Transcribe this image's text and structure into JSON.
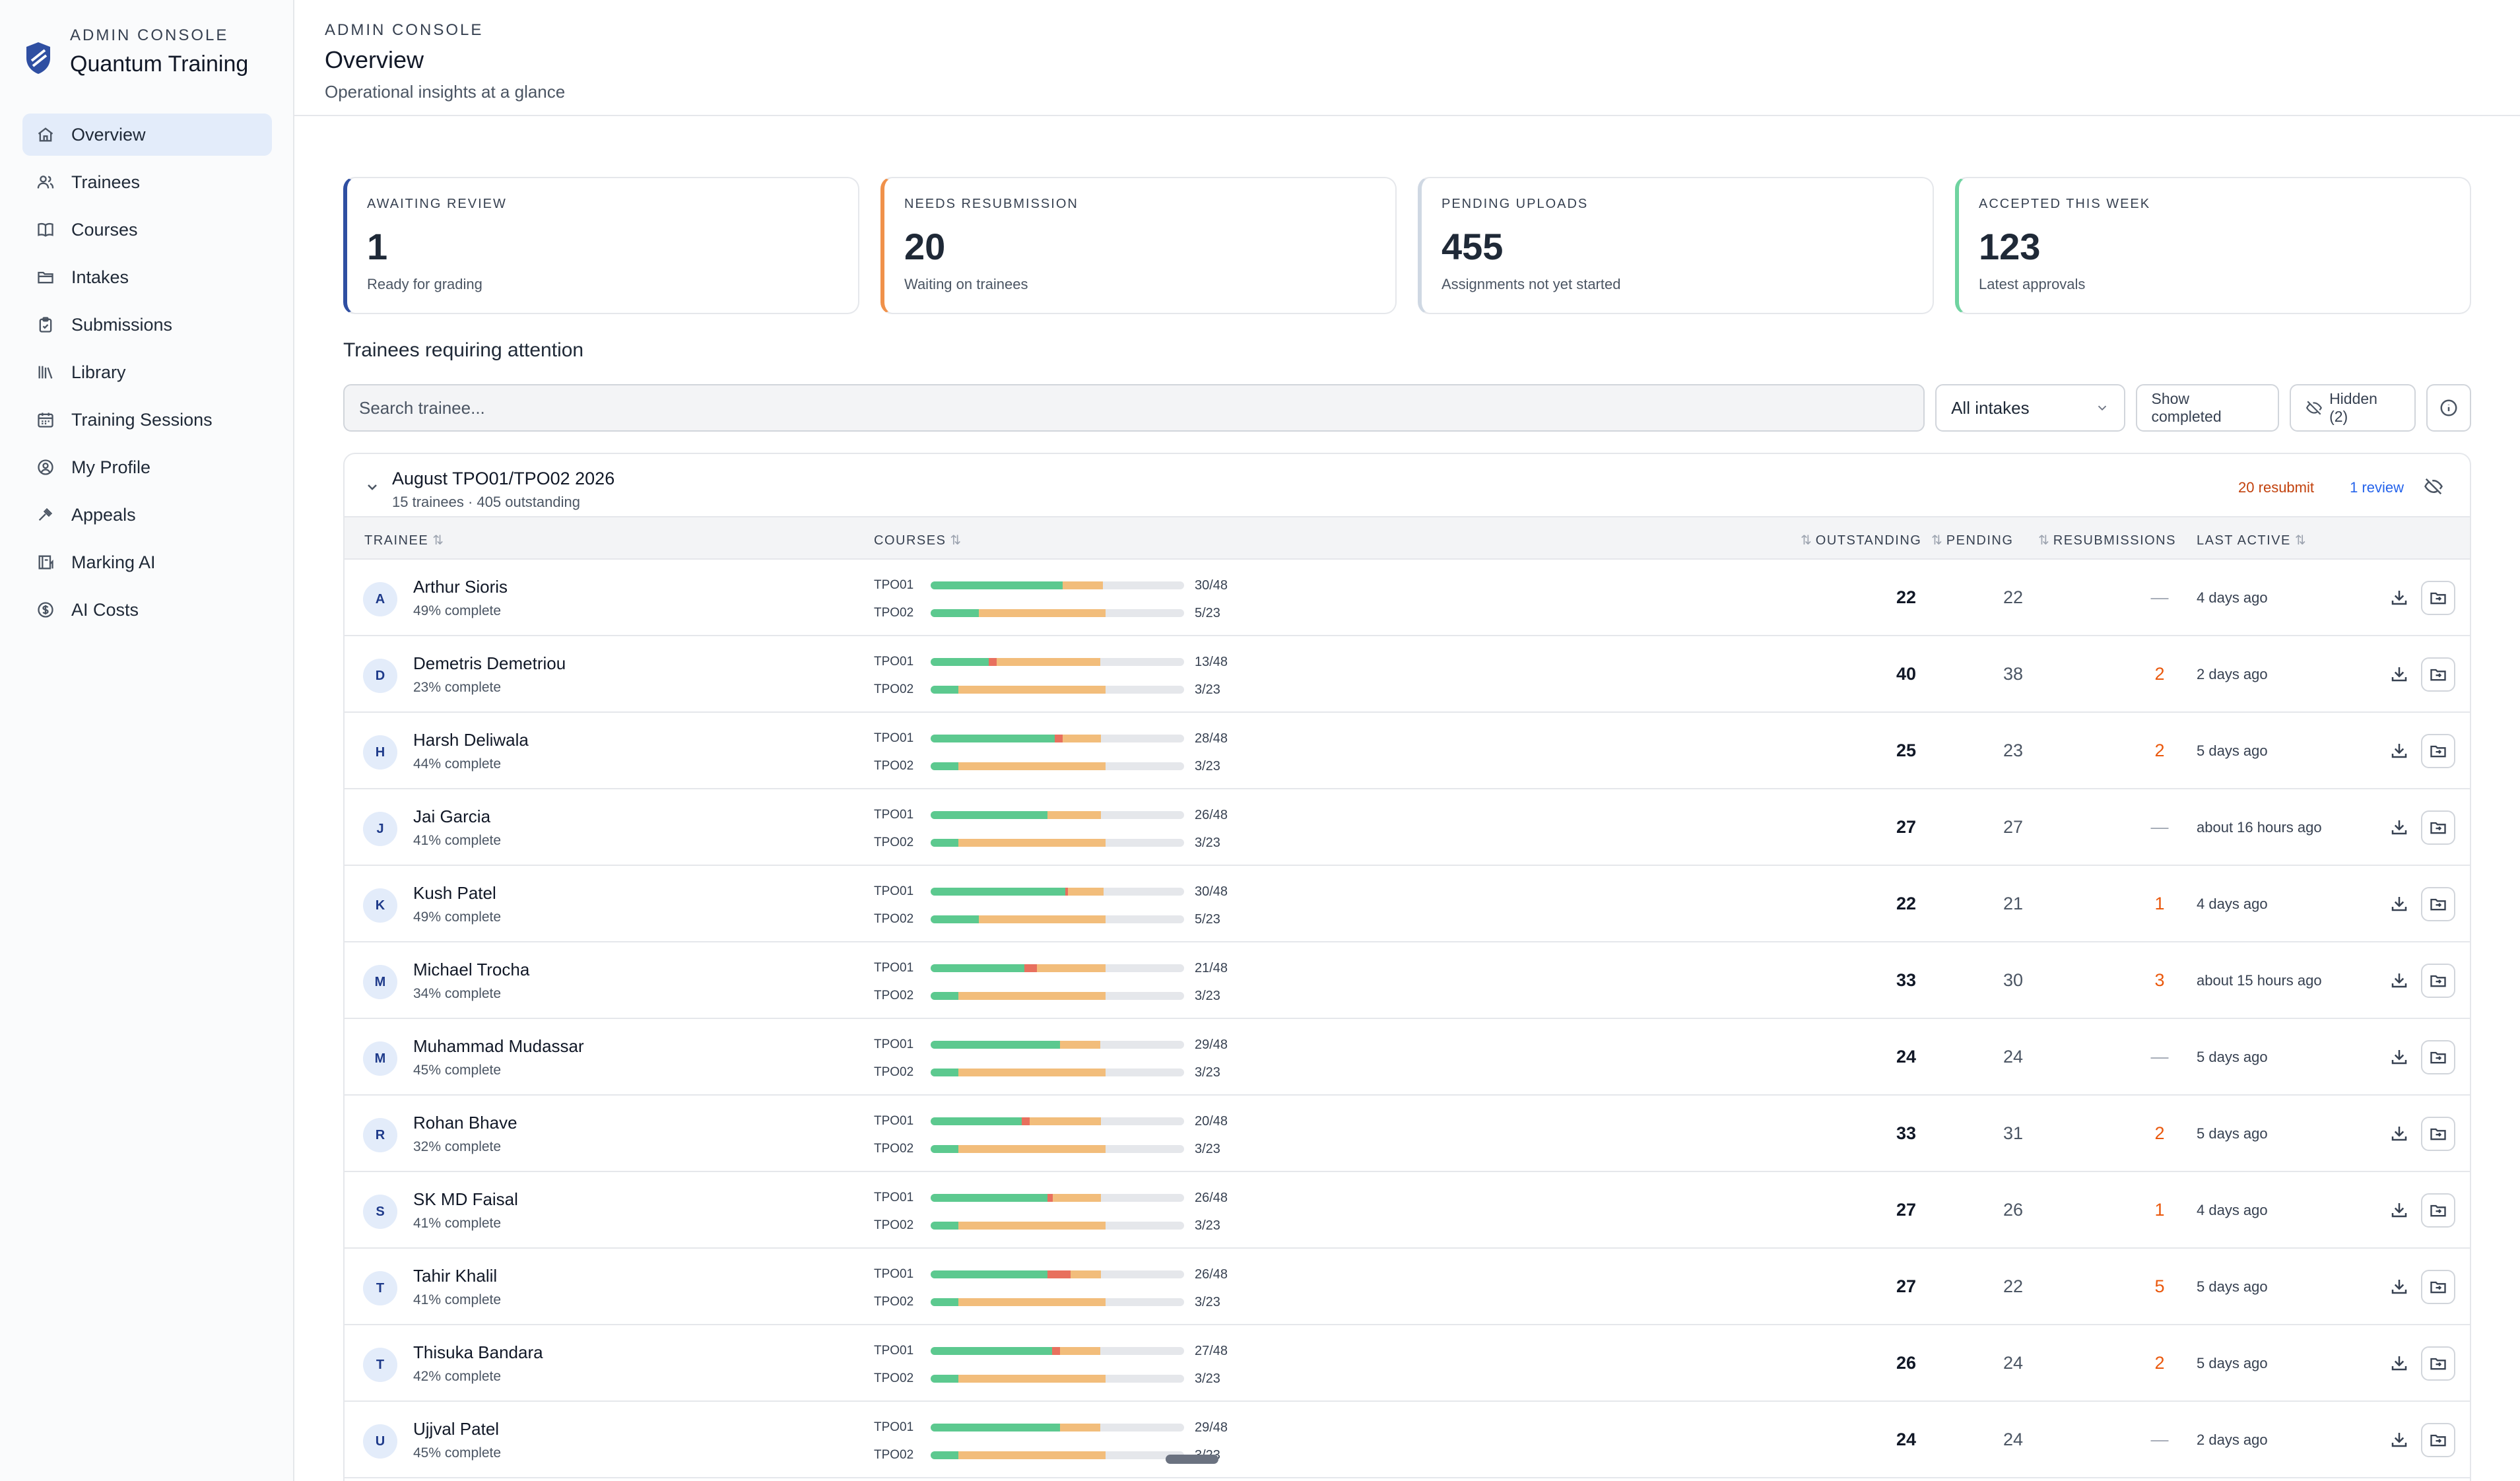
{
  "sidebar": {
    "brand_sub": "ADMIN CONSOLE",
    "brand_title": "Quantum Training",
    "items": [
      {
        "label": "Overview",
        "icon": "home-icon"
      },
      {
        "label": "Trainees",
        "icon": "users-icon"
      },
      {
        "label": "Courses",
        "icon": "book-icon"
      },
      {
        "label": "Intakes",
        "icon": "folder-icon"
      },
      {
        "label": "Submissions",
        "icon": "clipboard-icon"
      },
      {
        "label": "Library",
        "icon": "library-icon"
      },
      {
        "label": "Training Sessions",
        "icon": "calendar-icon"
      },
      {
        "label": "My Profile",
        "icon": "user-circle-icon"
      },
      {
        "label": "Appeals",
        "icon": "gavel-icon"
      },
      {
        "label": "Marking AI",
        "icon": "book-open-icon"
      },
      {
        "label": "AI Costs",
        "icon": "dollar-circle-icon"
      }
    ]
  },
  "header": {
    "sub": "ADMIN CONSOLE",
    "title": "Overview",
    "desc": "Operational insights at a glance"
  },
  "cards": [
    {
      "label": "AWAITING REVIEW",
      "value": "1",
      "hint": "Ready for grading",
      "color": "#2f4fa2"
    },
    {
      "label": "NEEDS RESUBMISSION",
      "value": "20",
      "hint": "Waiting on trainees",
      "color": "#f0914a"
    },
    {
      "label": "PENDING UPLOADS",
      "value": "455",
      "hint": "Assignments not yet started",
      "color": "#cfd8e3"
    },
    {
      "label": "ACCEPTED THIS WEEK",
      "value": "123",
      "hint": "Latest approvals",
      "color": "#6fd3a0"
    }
  ],
  "section_title": "Trainees requiring attention",
  "toolbar": {
    "search_placeholder": "Search trainee...",
    "intake_select": "All intakes",
    "show_completed": "Show completed",
    "hidden": "Hidden (2)"
  },
  "group": {
    "name": "August TPO01/TPO02 2026",
    "meta": "15 trainees · 405 outstanding",
    "resubmit": "20 resubmit",
    "review": "1 review"
  },
  "columns": {
    "trainee": "TRAINEE",
    "courses": "COURSES",
    "outstanding": "OUTSTANDING",
    "pending": "PENDING",
    "resubmissions": "RESUBMISSIONS",
    "last_active": "LAST ACTIVE"
  },
  "trainees": [
    {
      "initial": "A",
      "name": "Arthur Sioris",
      "pct": "49% complete",
      "courses": [
        {
          "code": "TPO01",
          "count": "30/48",
          "accepted": 0.52,
          "resub": 0,
          "pending": 0.16
        },
        {
          "code": "TPO02",
          "count": "5/23",
          "accepted": 0.19,
          "resub": 0,
          "pending": 0.5
        }
      ],
      "outstanding": "22",
      "pending": "22",
      "resub": "—",
      "last": "4 days ago"
    },
    {
      "initial": "D",
      "name": "Demetris Demetriou",
      "pct": "23% complete",
      "courses": [
        {
          "code": "TPO01",
          "count": "13/48",
          "accepted": 0.23,
          "resub": 0.03,
          "pending": 0.41
        },
        {
          "code": "TPO02",
          "count": "3/23",
          "accepted": 0.11,
          "resub": 0,
          "pending": 0.58
        }
      ],
      "outstanding": "40",
      "pending": "38",
      "resub": "2",
      "last": "2 days ago"
    },
    {
      "initial": "H",
      "name": "Harsh Deliwala",
      "pct": "44% complete",
      "courses": [
        {
          "code": "TPO01",
          "count": "28/48",
          "accepted": 0.49,
          "resub": 0.03,
          "pending": 0.15
        },
        {
          "code": "TPO02",
          "count": "3/23",
          "accepted": 0.11,
          "resub": 0,
          "pending": 0.58
        }
      ],
      "outstanding": "25",
      "pending": "23",
      "resub": "2",
      "last": "5 days ago"
    },
    {
      "initial": "J",
      "name": "Jai Garcia",
      "pct": "41% complete",
      "courses": [
        {
          "code": "TPO01",
          "count": "26/48",
          "accepted": 0.46,
          "resub": 0,
          "pending": 0.21
        },
        {
          "code": "TPO02",
          "count": "3/23",
          "accepted": 0.11,
          "resub": 0,
          "pending": 0.58
        }
      ],
      "outstanding": "27",
      "pending": "27",
      "resub": "—",
      "last": "about 16 hours ago"
    },
    {
      "initial": "K",
      "name": "Kush Patel",
      "pct": "49% complete",
      "courses": [
        {
          "code": "TPO01",
          "count": "30/48",
          "accepted": 0.53,
          "resub": 0.01,
          "pending": 0.14
        },
        {
          "code": "TPO02",
          "count": "5/23",
          "accepted": 0.19,
          "resub": 0,
          "pending": 0.5
        }
      ],
      "outstanding": "22",
      "pending": "21",
      "resub": "1",
      "last": "4 days ago"
    },
    {
      "initial": "M",
      "name": "Michael Trocha",
      "pct": "34% complete",
      "courses": [
        {
          "code": "TPO01",
          "count": "21/48",
          "accepted": 0.37,
          "resub": 0.05,
          "pending": 0.27
        },
        {
          "code": "TPO02",
          "count": "3/23",
          "accepted": 0.11,
          "resub": 0,
          "pending": 0.58
        }
      ],
      "outstanding": "33",
      "pending": "30",
      "resub": "3",
      "last": "about 15 hours ago"
    },
    {
      "initial": "M",
      "name": "Muhammad Mudassar",
      "pct": "45% complete",
      "courses": [
        {
          "code": "TPO01",
          "count": "29/48",
          "accepted": 0.51,
          "resub": 0,
          "pending": 0.16
        },
        {
          "code": "TPO02",
          "count": "3/23",
          "accepted": 0.11,
          "resub": 0,
          "pending": 0.58
        }
      ],
      "outstanding": "24",
      "pending": "24",
      "resub": "—",
      "last": "5 days ago"
    },
    {
      "initial": "R",
      "name": "Rohan Bhave",
      "pct": "32% complete",
      "courses": [
        {
          "code": "TPO01",
          "count": "20/48",
          "accepted": 0.36,
          "resub": 0.03,
          "pending": 0.28
        },
        {
          "code": "TPO02",
          "count": "3/23",
          "accepted": 0.11,
          "resub": 0,
          "pending": 0.58
        }
      ],
      "outstanding": "33",
      "pending": "31",
      "resub": "2",
      "last": "5 days ago"
    },
    {
      "initial": "S",
      "name": "SK MD Faisal",
      "pct": "41% complete",
      "courses": [
        {
          "code": "TPO01",
          "count": "26/48",
          "accepted": 0.46,
          "resub": 0.02,
          "pending": 0.19
        },
        {
          "code": "TPO02",
          "count": "3/23",
          "accepted": 0.11,
          "resub": 0,
          "pending": 0.58
        }
      ],
      "outstanding": "27",
      "pending": "26",
      "resub": "1",
      "last": "4 days ago"
    },
    {
      "initial": "T",
      "name": "Tahir Khalil",
      "pct": "41% complete",
      "courses": [
        {
          "code": "TPO01",
          "count": "26/48",
          "accepted": 0.46,
          "resub": 0.09,
          "pending": 0.12
        },
        {
          "code": "TPO02",
          "count": "3/23",
          "accepted": 0.11,
          "resub": 0,
          "pending": 0.58
        }
      ],
      "outstanding": "27",
      "pending": "22",
      "resub": "5",
      "last": "5 days ago"
    },
    {
      "initial": "T",
      "name": "Thisuka Bandara",
      "pct": "42% complete",
      "courses": [
        {
          "code": "TPO01",
          "count": "27/48",
          "accepted": 0.48,
          "resub": 0.03,
          "pending": 0.16
        },
        {
          "code": "TPO02",
          "count": "3/23",
          "accepted": 0.11,
          "resub": 0,
          "pending": 0.58
        }
      ],
      "outstanding": "26",
      "pending": "24",
      "resub": "2",
      "last": "5 days ago"
    },
    {
      "initial": "U",
      "name": "Ujjval Patel",
      "pct": "45% complete",
      "courses": [
        {
          "code": "TPO01",
          "count": "29/48",
          "accepted": 0.51,
          "resub": 0,
          "pending": 0.16
        },
        {
          "code": "TPO02",
          "count": "3/23",
          "accepted": 0.11,
          "resub": 0,
          "pending": 0.58
        }
      ],
      "outstanding": "24",
      "pending": "24",
      "resub": "—",
      "last": "2 days ago"
    }
  ]
}
